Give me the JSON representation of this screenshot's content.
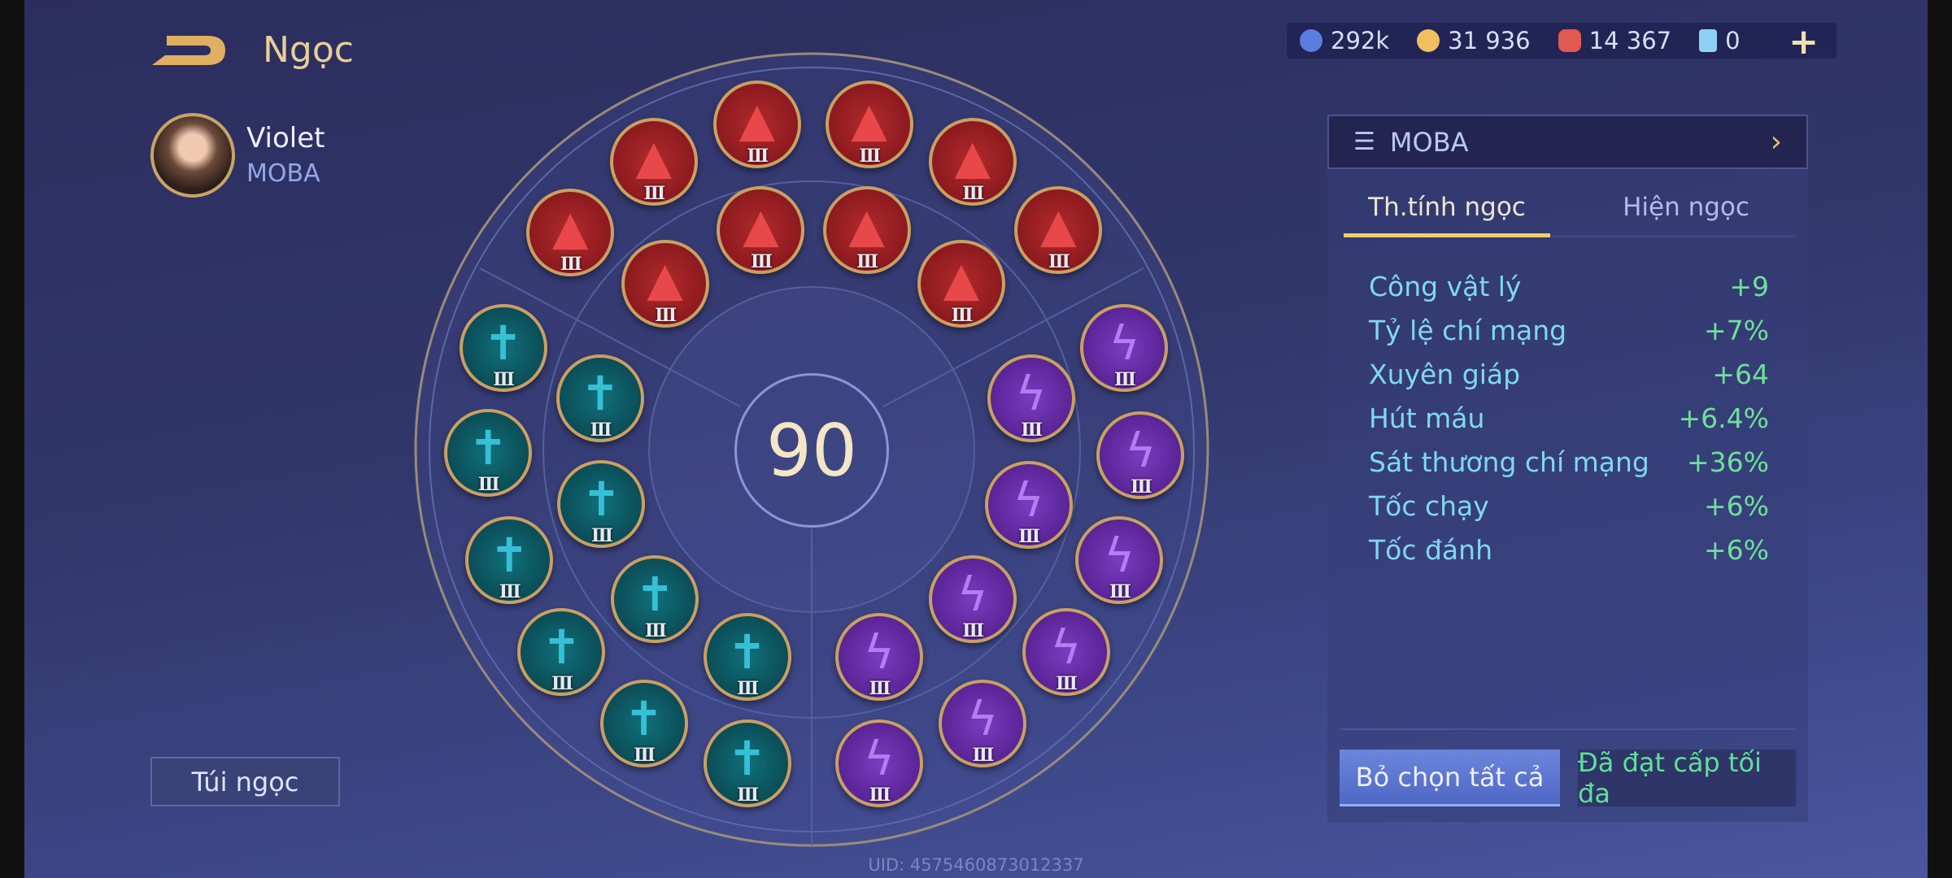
{
  "header": {
    "title": "Ngọc",
    "back_icon": "back-arrow-icon"
  },
  "hero": {
    "name": "Violet",
    "preset": "MOBA"
  },
  "bag_button": "Túi ngọc",
  "currency": [
    {
      "icon": "blue-coin-icon",
      "value": "292k",
      "color": "#5a7de0"
    },
    {
      "icon": "gold-coin-icon",
      "value": "31 936",
      "color": "#f0c060"
    },
    {
      "icon": "red-gem-icon",
      "value": "14 367",
      "color": "#e05a50"
    },
    {
      "icon": "card-icon",
      "value": "0",
      "color": "#8fd0f5"
    }
  ],
  "preset_selector": {
    "label": "MOBA",
    "icon": "list-icon"
  },
  "tabs": [
    {
      "label": "Th.tính ngọc",
      "active": true
    },
    {
      "label": "Hiện ngọc",
      "active": false
    }
  ],
  "stats": [
    {
      "label": "Công vật lý",
      "value": "+9"
    },
    {
      "label": "Tỷ lệ chí mạng",
      "value": "+7%"
    },
    {
      "label": "Xuyên giáp",
      "value": "+64"
    },
    {
      "label": "Hút máu",
      "value": "+6.4%"
    },
    {
      "label": "Sát thương chí mạng",
      "value": "+36%"
    },
    {
      "label": "Tốc chạy",
      "value": "+6%"
    },
    {
      "label": "Tốc đánh",
      "value": "+6%"
    }
  ],
  "buttons": {
    "deselect_all": "Bỏ chọn tất cả",
    "max_level": "Đã đạt cấp tối đa"
  },
  "level": "90",
  "gems": {
    "red": {
      "count": 10,
      "tier": "III",
      "icon": "flame-gem-icon"
    },
    "teal": {
      "count": 10,
      "tier": "III",
      "icon": "sword-gem-icon"
    },
    "purple": {
      "count": 10,
      "tier": "III",
      "icon": "lightning-gem-icon"
    }
  },
  "uid": "UID: 4575460873012337"
}
